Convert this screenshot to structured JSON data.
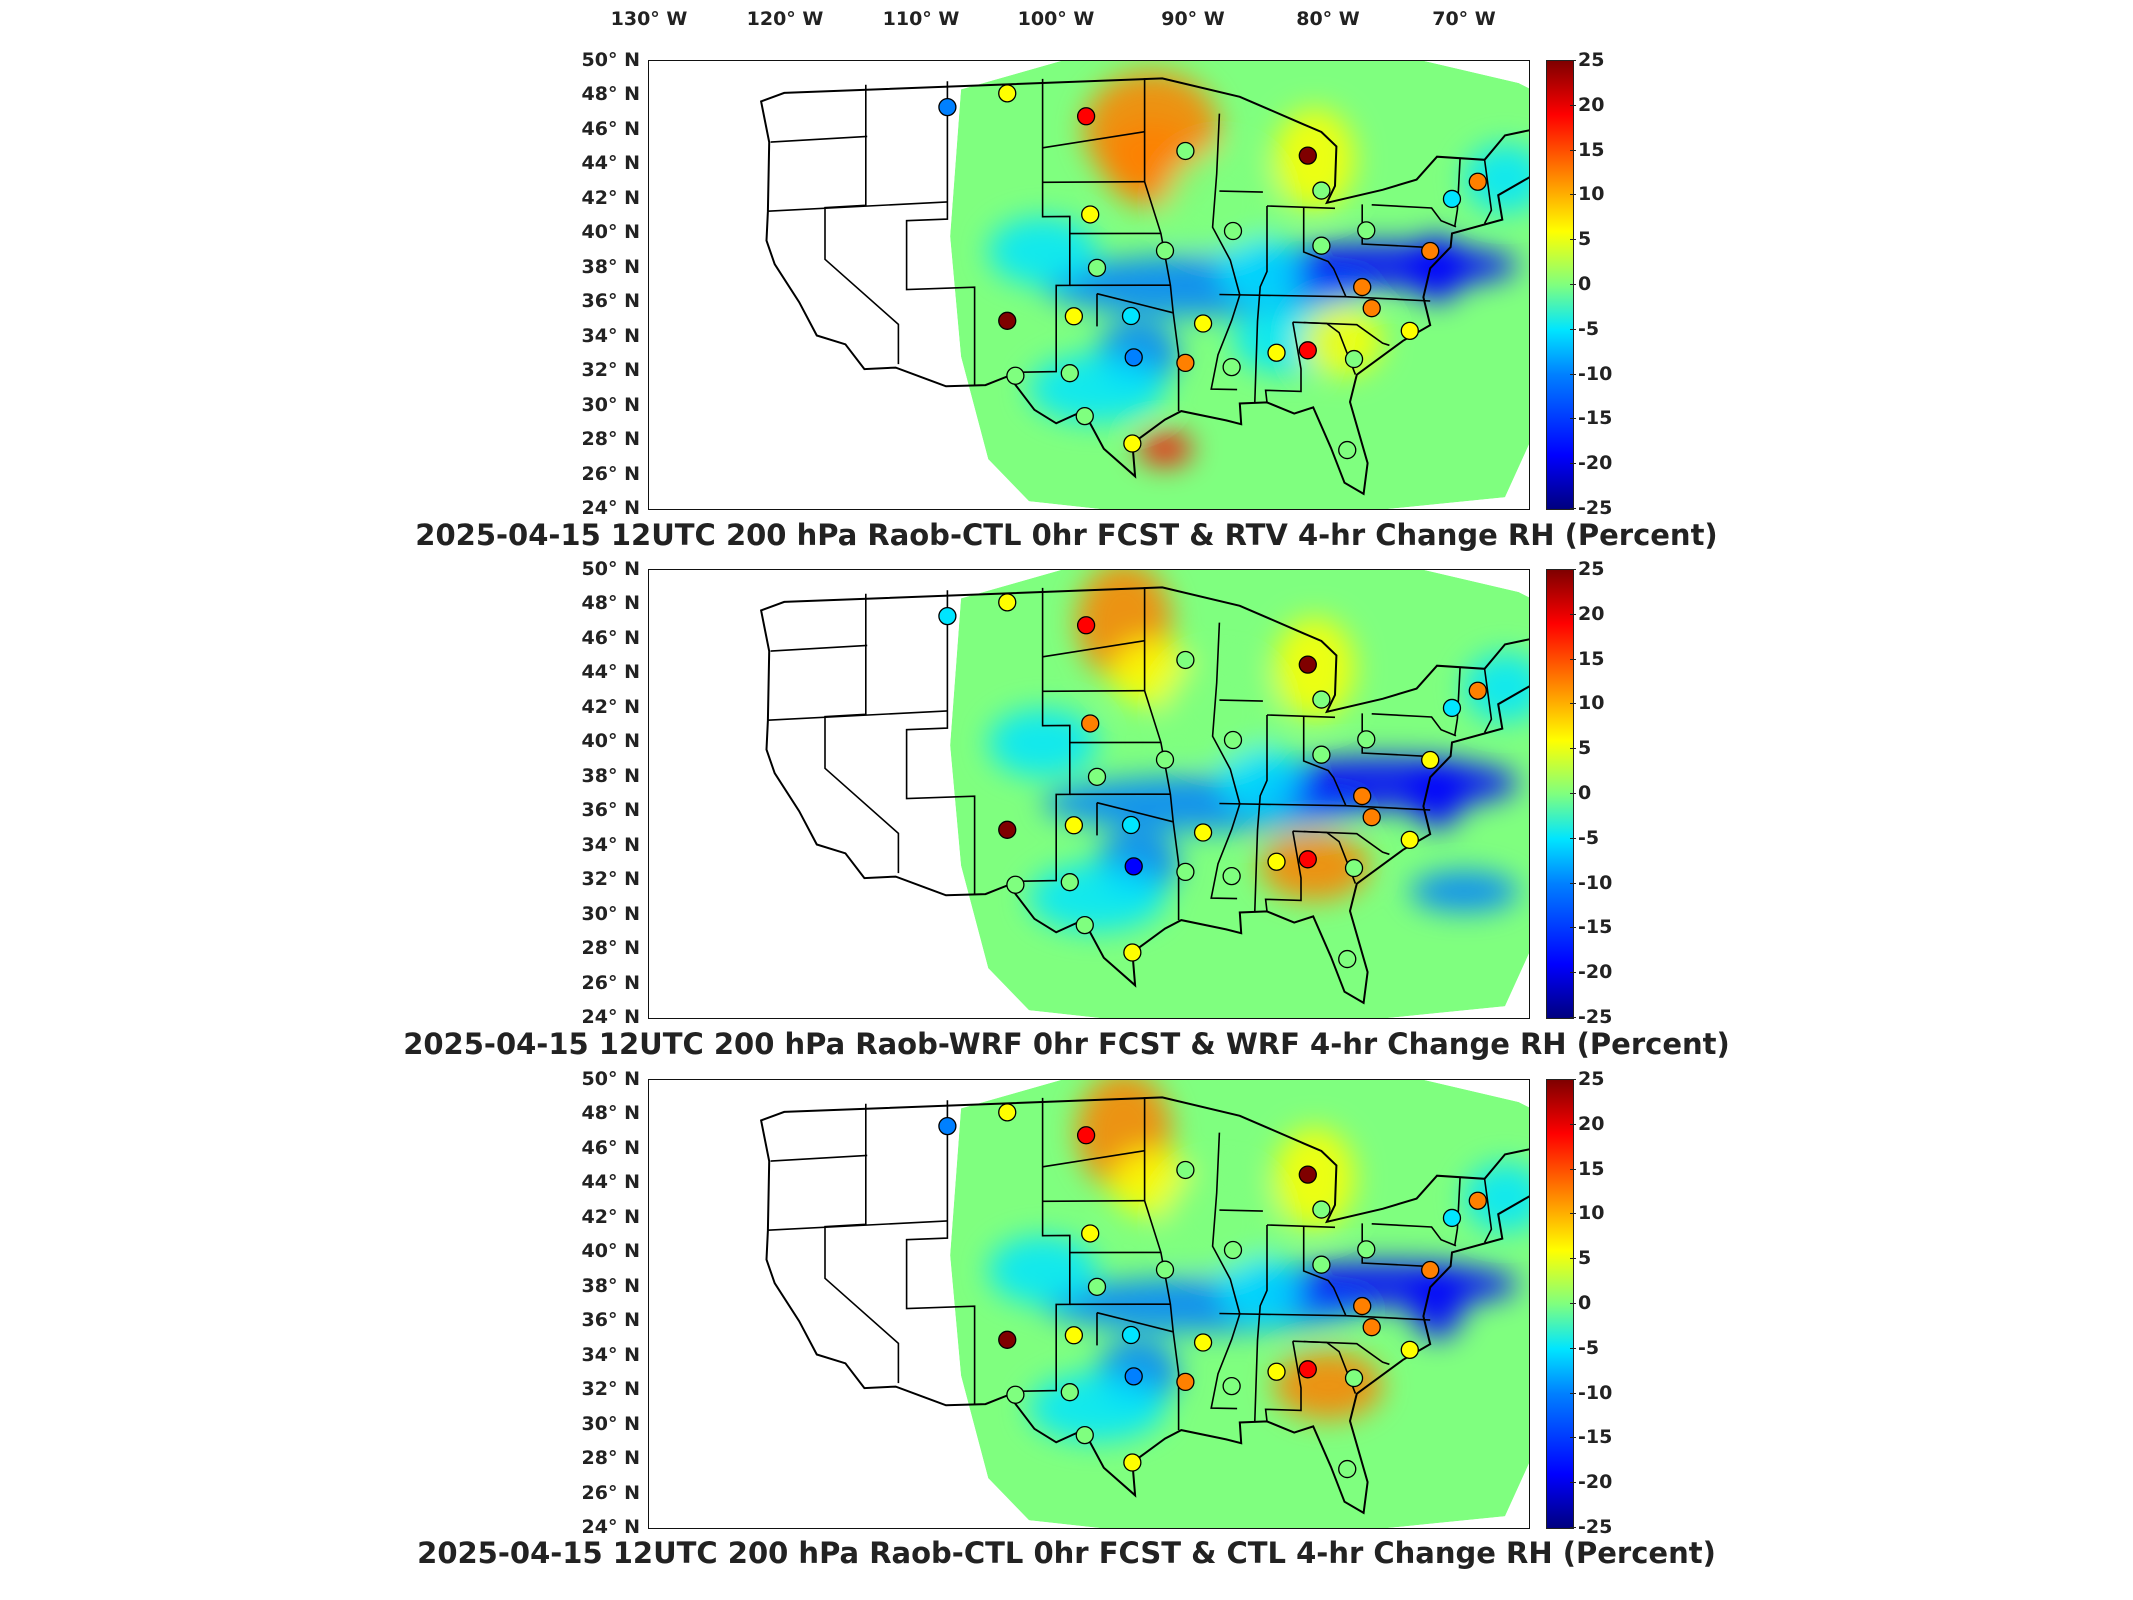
{
  "longitude_labels": [
    "130° W",
    "120° W",
    "110° W",
    "100° W",
    "90° W",
    "80° W",
    "70° W"
  ],
  "latitude_labels": [
    "50° N",
    "48° N",
    "46° N",
    "44° N",
    "42° N",
    "40° N",
    "38° N",
    "36° N",
    "34° N",
    "32° N",
    "30° N",
    "28° N",
    "26° N",
    "24° N"
  ],
  "colorbar": {
    "ticks": [
      "25",
      "20",
      "15",
      "10",
      "5",
      "0",
      "-5",
      "-10",
      "-15",
      "-20",
      "-25"
    ],
    "min": -25,
    "max": 25,
    "colormap": [
      "#00007f",
      "#0000ff",
      "#0080ff",
      "#00e5ff",
      "#7fff7f",
      "#ffff00",
      "#ff8000",
      "#ff0000",
      "#7f0000"
    ]
  },
  "panels": [
    {
      "title": "2025-04-15 12UTC 200 hPa Raob-CTL 0hr FCST & RTV 4-hr Change RH (Percent)"
    },
    {
      "title": "2025-04-15 12UTC 200 hPa Raob-WRF 0hr FCST & WRF 4-hr Change RH (Percent)"
    },
    {
      "title": "2025-04-15 12UTC 200 hPa Raob-CTL 0hr FCST & CTL 4-hr Change RH (Percent)"
    }
  ],
  "raob_stations": [
    {
      "lon": -111.0,
      "lat": 47.5,
      "vals": [
        -10,
        -8,
        -10
      ]
    },
    {
      "lon": -106.6,
      "lat": 48.2,
      "vals": [
        8,
        5,
        8
      ]
    },
    {
      "lon": -100.8,
      "lat": 46.8,
      "vals": [
        16,
        16,
        16
      ]
    },
    {
      "lon": -100.5,
      "lat": 41.1,
      "vals": [
        6,
        10,
        8
      ]
    },
    {
      "lon": -100.0,
      "lat": 38.0,
      "vals": [
        -3,
        0,
        -3
      ]
    },
    {
      "lon": -95.0,
      "lat": 39.0,
      "vals": [
        2,
        2,
        2
      ]
    },
    {
      "lon": -93.5,
      "lat": 44.8,
      "vals": [
        2,
        2,
        2
      ]
    },
    {
      "lon": -90.0,
      "lat": 40.2,
      "vals": [
        0,
        0,
        0
      ]
    },
    {
      "lon": -84.5,
      "lat": 44.7,
      "vals": [
        22,
        22,
        22
      ]
    },
    {
      "lon": -83.5,
      "lat": 42.7,
      "vals": [
        0,
        0,
        0
      ]
    },
    {
      "lon": -83.5,
      "lat": 39.5,
      "vals": [
        0,
        0,
        0
      ]
    },
    {
      "lon": -80.2,
      "lat": 40.5,
      "vals": [
        0,
        0,
        0
      ]
    },
    {
      "lon": -80.5,
      "lat": 37.2,
      "vals": [
        10,
        10,
        10
      ]
    },
    {
      "lon": -79.8,
      "lat": 36.0,
      "vals": [
        10,
        12,
        10
      ]
    },
    {
      "lon": -77.0,
      "lat": 34.8,
      "vals": [
        8,
        8,
        8
      ]
    },
    {
      "lon": -81.1,
      "lat": 33.0,
      "vals": [
        0,
        2,
        0
      ]
    },
    {
      "lon": -84.5,
      "lat": 33.4,
      "vals": [
        16,
        18,
        16
      ]
    },
    {
      "lon": -86.8,
      "lat": 33.2,
      "vals": [
        6,
        4,
        6
      ]
    },
    {
      "lon": -90.1,
      "lat": 32.3,
      "vals": [
        0,
        0,
        0
      ]
    },
    {
      "lon": -92.2,
      "lat": 34.8,
      "vals": [
        6,
        6,
        6
      ]
    },
    {
      "lon": -93.5,
      "lat": 32.5,
      "vals": [
        10,
        2,
        10
      ]
    },
    {
      "lon": -97.3,
      "lat": 32.8,
      "vals": [
        -12,
        -16,
        -12
      ]
    },
    {
      "lon": -97.5,
      "lat": 35.2,
      "vals": [
        -6,
        -6,
        -6
      ]
    },
    {
      "lon": -101.7,
      "lat": 35.2,
      "vals": [
        4,
        4,
        4
      ]
    },
    {
      "lon": -106.6,
      "lat": 35.0,
      "vals": [
        25,
        25,
        25
      ]
    },
    {
      "lon": -106.0,
      "lat": 31.8,
      "vals": [
        0,
        0,
        0
      ]
    },
    {
      "lon": -102.0,
      "lat": 31.9,
      "vals": [
        0,
        0,
        0
      ]
    },
    {
      "lon": -100.9,
      "lat": 29.4,
      "vals": [
        0,
        0,
        0
      ]
    },
    {
      "lon": -97.4,
      "lat": 27.8,
      "vals": [
        8,
        8,
        8
      ]
    },
    {
      "lon": -81.6,
      "lat": 27.7,
      "vals": [
        0,
        0,
        0
      ]
    },
    {
      "lon": -72.0,
      "lat": 43.7,
      "vals": [
        14,
        14,
        14
      ]
    },
    {
      "lon": -73.9,
      "lat": 42.6,
      "vals": [
        -4,
        -4,
        -4
      ]
    },
    {
      "lon": -75.5,
      "lat": 39.5,
      "vals": [
        10,
        8,
        10
      ]
    }
  ]
}
